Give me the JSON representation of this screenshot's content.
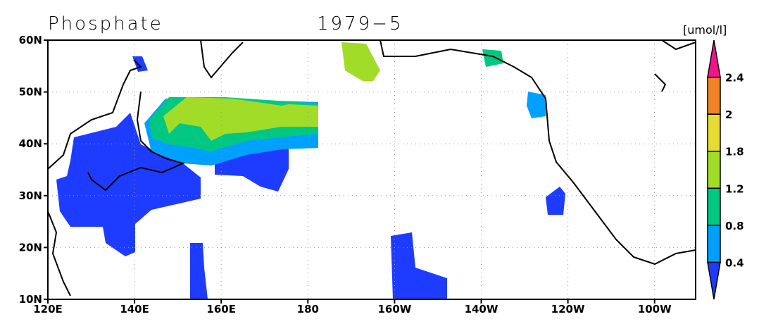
{
  "header": {
    "title": "Phosphate",
    "date": "1979−5",
    "unit": "[umol/l]"
  },
  "map": {
    "lat_labels": [
      "60N",
      "50N",
      "40N",
      "30N",
      "20N",
      "10N"
    ],
    "lon_labels": [
      "120E",
      "140E",
      "160E",
      "180",
      "160W",
      "140W",
      "120W",
      "100W"
    ]
  },
  "colorbar": {
    "labels": [
      "0.4",
      "0.8",
      "1.2",
      "1.8",
      "2",
      "2.4"
    ],
    "colors": [
      "#1e3cff",
      "#00a0ff",
      "#00c882",
      "#a0dc28",
      "#e6dc32",
      "#f08228",
      "#f0148c"
    ]
  }
}
